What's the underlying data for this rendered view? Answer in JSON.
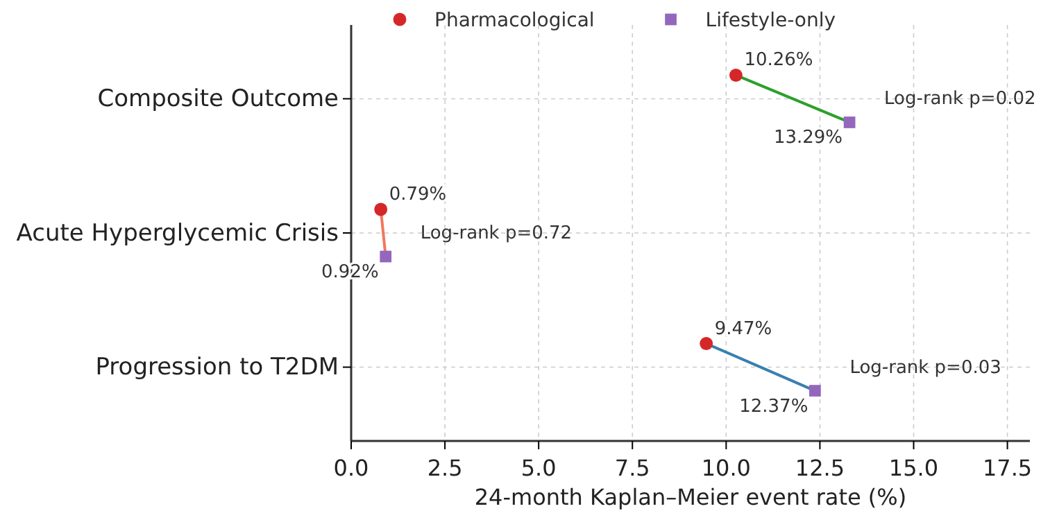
{
  "chart_data": {
    "type": "scatter",
    "orientation": "horizontal",
    "xlabel": "24-month Kaplan–Meier event rate (%)",
    "categories": [
      "Composite Outcome",
      "Acute Hyperglycemic Crisis",
      "Progression to T2DM"
    ],
    "series": [
      {
        "name": "Pharmacological",
        "color": "#d62728",
        "marker": "circle",
        "values": [
          10.26,
          0.79,
          9.47
        ],
        "value_labels": [
          "10.26%",
          "0.79%",
          "9.47%"
        ]
      },
      {
        "name": "Lifestyle-only",
        "color": "#9467bd",
        "marker": "square",
        "values": [
          13.29,
          0.92,
          12.37
        ],
        "value_labels": [
          "13.29%",
          "0.92%",
          "12.37%"
        ]
      }
    ],
    "xlim": [
      0,
      18.1
    ],
    "xticks": [
      {
        "value": 0,
        "label": "0.0"
      },
      2.5,
      {
        "value": 5,
        "label": "5.0"
      },
      7.5,
      {
        "value": 10,
        "label": "10.0"
      },
      12.5,
      {
        "value": 15,
        "label": "15.0"
      },
      17.5
    ],
    "annotations": [
      "Log-rank p=0.02",
      "Log-rank p=0.72",
      "Log-rank p=0.03"
    ],
    "grid": true,
    "legend": "top"
  }
}
